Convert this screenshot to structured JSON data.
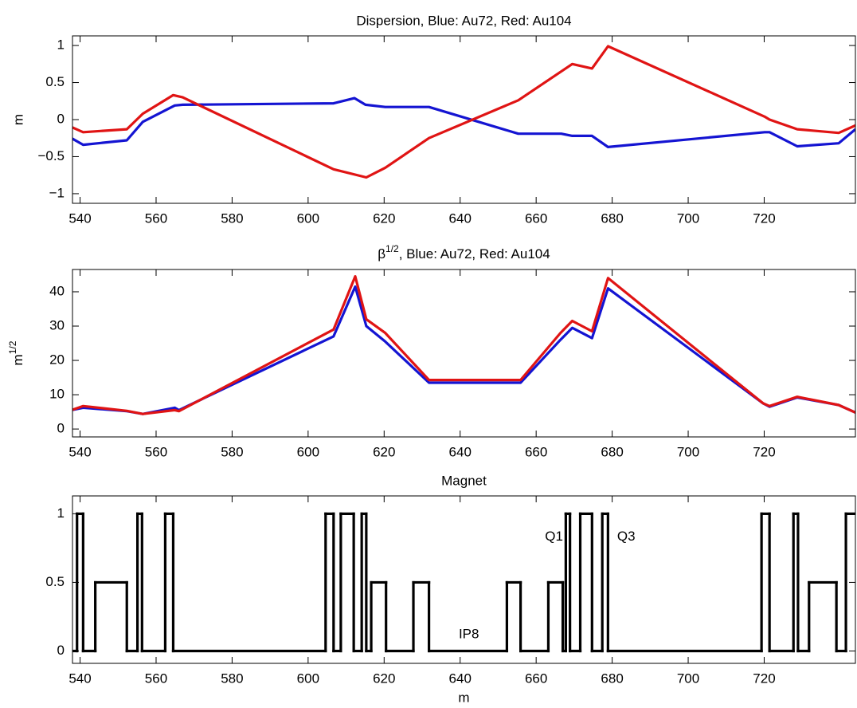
{
  "chart_data": [
    {
      "type": "line",
      "title": "Dispersion, Blue: Au72, Red: Au104",
      "ylabel": "m",
      "xlim": [
        538,
        744
      ],
      "ylim": [
        -1.13,
        1.13
      ],
      "xticks": [
        540,
        560,
        580,
        600,
        620,
        640,
        660,
        680,
        700,
        720
      ],
      "yticks": [
        {
          "value": -1,
          "label": "−1"
        },
        {
          "value": -0.5,
          "label": "−0.5"
        },
        0,
        0.5,
        1
      ],
      "series": [
        {
          "name": "Au72",
          "color": "#1414d2",
          "x": [
            537.7,
            540.8,
            552.3,
            556.5,
            564.9,
            567,
            606.7,
            612.2,
            615.1,
            620.3,
            631.8,
            655.3,
            666.6,
            669.5,
            674.7,
            678.9,
            720.1,
            721.4,
            728.7,
            739.6,
            744
          ],
          "values": [
            -0.25,
            -0.34,
            -0.28,
            -0.03,
            0.19,
            0.2,
            0.22,
            0.29,
            0.2,
            0.17,
            0.17,
            -0.19,
            -0.19,
            -0.22,
            -0.22,
            -0.37,
            -0.17,
            -0.17,
            -0.36,
            -0.32,
            -0.13
          ]
        },
        {
          "name": "Au104",
          "color": "#e01414",
          "x": [
            537.7,
            540.8,
            552.3,
            556.5,
            564.5,
            567,
            606.7,
            615.3,
            620.3,
            631.8,
            655.3,
            669.5,
            674.7,
            678.9,
            720.1,
            721.4,
            728.7,
            739.6,
            744
          ],
          "values": [
            -0.1,
            -0.17,
            -0.13,
            0.08,
            0.33,
            0.3,
            -0.67,
            -0.78,
            -0.65,
            -0.25,
            0.26,
            0.75,
            0.69,
            0.99,
            0.04,
            0.0,
            -0.13,
            -0.18,
            -0.08
          ]
        }
      ]
    },
    {
      "type": "line",
      "title": {
        "text": "β",
        "sup": "1/2",
        "rest": ", Blue: Au72, Red: Au104"
      },
      "ylabel": {
        "text": "m",
        "sup": "1/2"
      },
      "xlim": [
        538,
        744
      ],
      "ylim": [
        -2.3,
        46.5
      ],
      "xticks": [
        540,
        560,
        580,
        600,
        620,
        640,
        660,
        680,
        700,
        720
      ],
      "yticks": [
        0,
        10,
        20,
        30,
        40
      ],
      "series": [
        {
          "name": "Au72",
          "color": "#1414d2",
          "x": [
            537.7,
            540.8,
            552.3,
            556.5,
            564.9,
            566,
            606.7,
            612.4,
            615.3,
            620.3,
            631.8,
            655.9,
            666.4,
            669.5,
            674.7,
            678.9,
            719.7,
            721.4,
            728.7,
            739.6,
            744
          ],
          "values": [
            5.5,
            6.2,
            5.2,
            4.4,
            6.2,
            5.5,
            27,
            41.5,
            30,
            25.5,
            13.5,
            13.5,
            26,
            29.5,
            26.5,
            41,
            7.5,
            6.5,
            9.2,
            7,
            4.8
          ]
        },
        {
          "name": "Au104",
          "color": "#e01414",
          "x": [
            537.7,
            540.8,
            552.3,
            556.5,
            564.9,
            566,
            606.7,
            612.4,
            615.3,
            620.3,
            631.8,
            655.9,
            666.4,
            669.5,
            674.7,
            678.9,
            719.7,
            721.4,
            728.7,
            739.6,
            744
          ],
          "values": [
            5.5,
            6.7,
            5.3,
            4.4,
            5.5,
            5.2,
            29,
            44.5,
            32,
            28,
            14.3,
            14.3,
            28,
            31.5,
            28.5,
            44,
            7.5,
            6.7,
            9.4,
            7,
            4.8
          ]
        }
      ]
    },
    {
      "type": "step",
      "title": "Magnet",
      "xlabel": "m",
      "xlim": [
        538,
        744
      ],
      "ylim": [
        -0.09,
        1.13
      ],
      "xticks": [
        540,
        560,
        580,
        600,
        620,
        640,
        660,
        680,
        700,
        720
      ],
      "yticks": [
        0,
        0.5,
        1
      ],
      "series": [
        {
          "name": "Magnet",
          "color": "#000000",
          "x": [
            537.7,
            539.2,
            540.8,
            544,
            552.3,
            555.1,
            556.3,
            562.4,
            564.5,
            604.6,
            606.7,
            608.6,
            612,
            614.1,
            615.3,
            616.6,
            620.5,
            627.7,
            631.8,
            652.3,
            655.9,
            663.2,
            667,
            667.8,
            668.9,
            671.6,
            674.7,
            677.4,
            678.9,
            719.3,
            721.4,
            727.7,
            728.9,
            731.8,
            739,
            741.5
          ],
          "values": [
            0,
            1,
            0,
            0.5,
            0,
            1,
            0,
            1,
            0,
            1,
            0,
            1,
            0,
            1,
            0,
            0.5,
            0,
            0.5,
            0,
            0.5,
            0,
            0.5,
            0,
            1,
            0,
            1,
            0,
            1,
            0,
            1,
            0,
            1,
            0,
            0.5,
            0,
            1
          ]
        }
      ],
      "annotations": [
        {
          "text": "Q1",
          "x": 664.7,
          "y": 0.83
        },
        {
          "text": "Q3",
          "x": 683.7,
          "y": 0.83
        },
        {
          "text": "IP8",
          "x": 642.3,
          "y": 0.12
        }
      ]
    }
  ]
}
